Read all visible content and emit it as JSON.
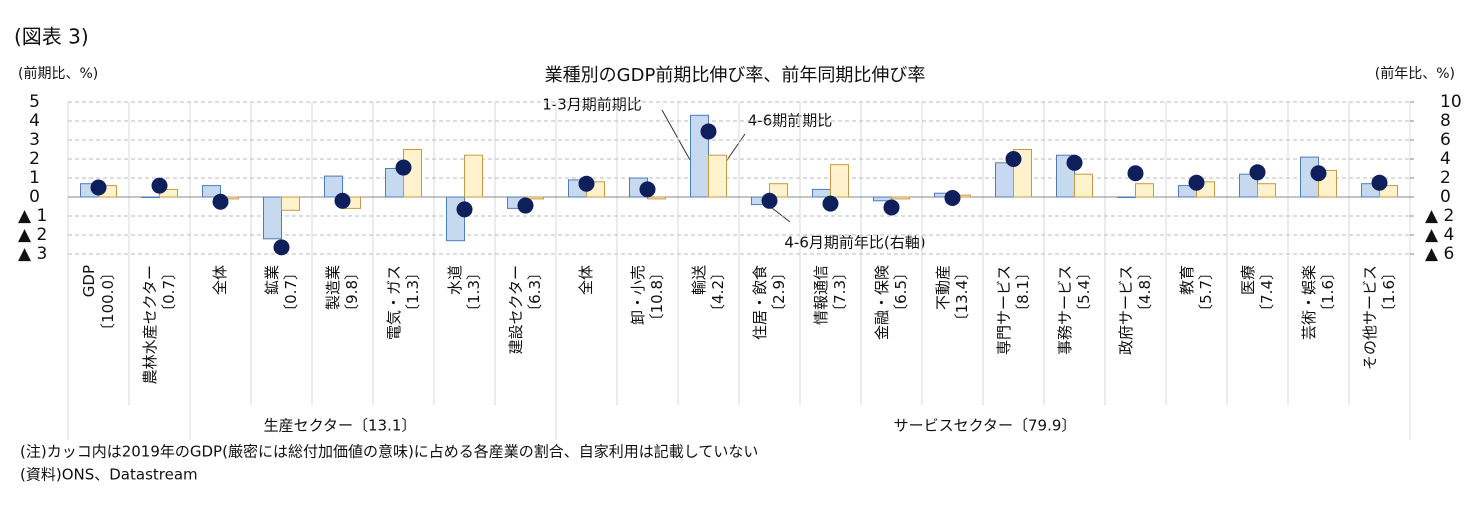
{
  "figure_label": "(図表 3)",
  "chart_data": {
    "type": "bar",
    "title": "業種別のGDP前期比伸び率、前年同期比伸び率",
    "y_label": "(前期比、%)",
    "y2_label": "(前年比、%)",
    "categories": [
      "GDP",
      "農林水産セクター",
      "全体",
      "鉱業",
      "製造業",
      "電気・ガス",
      "水道",
      "建設セクター",
      "全体",
      "卸・小売",
      "輸送",
      "住居・飲食",
      "情報通信",
      "金融・保険",
      "不動産",
      "専門サービス",
      "事務サービス",
      "政府サービス",
      "教育",
      "医療",
      "芸術・娯楽",
      "その他サービス"
    ],
    "shares": [
      "〔100.0〕",
      "〔0.7〕",
      null,
      "〔0.7〕",
      "〔9.8〕",
      "〔1.3〕",
      "〔1.3〕",
      "〔6.3〕",
      null,
      "〔10.8〕",
      "〔4.2〕",
      "〔2.9〕",
      "〔7.3〕",
      "〔6.5〕",
      "〔13.4〕",
      "〔8.1〕",
      "〔5.4〕",
      "〔4.8〕",
      "〔5.7〕",
      "〔7.4〕",
      "〔1.6〕",
      "〔1.6〕"
    ],
    "groups": [
      "生産セクター〔13.1〕",
      "サービスセクター〔79.9〕"
    ],
    "series": [
      {
        "name": "1-3月期前期比",
        "color": "#c6d9ef",
        "edge": "#4f7db8",
        "values": [
          0.7,
          0.0,
          0.6,
          -2.2,
          1.1,
          1.5,
          -2.3,
          -0.6,
          0.9,
          1.0,
          4.3,
          -0.4,
          0.4,
          -0.2,
          0.2,
          1.8,
          2.2,
          0.0,
          0.6,
          1.2,
          2.1,
          0.7
        ]
      },
      {
        "name": "4-6期前期比",
        "color": "#fff2cc",
        "edge": "#c49a45",
        "values": [
          0.6,
          0.4,
          -0.1,
          -0.7,
          -0.6,
          2.5,
          2.2,
          -0.1,
          0.8,
          -0.1,
          2.2,
          0.7,
          1.7,
          -0.1,
          0.1,
          2.5,
          1.2,
          0.7,
          0.8,
          0.7,
          1.4,
          0.6
        ]
      },
      {
        "name": "4-6月期前年比(右軸)",
        "color": "#0f1f5c",
        "axis": "y2",
        "values": [
          1.0,
          1.2,
          -0.5,
          -5.3,
          -0.4,
          3.1,
          -1.3,
          -0.9,
          1.4,
          0.8,
          6.9,
          -0.4,
          -0.7,
          -1.1,
          -0.1,
          4.0,
          3.6,
          2.5,
          1.5,
          2.6,
          2.5,
          1.5
        ]
      }
    ],
    "ylim": [
      -3,
      5
    ],
    "yticks": [
      {
        "value": -3,
        "label": "▲ 3"
      },
      {
        "value": -2,
        "label": "▲ 2"
      },
      {
        "value": -1,
        "label": "▲ 1"
      },
      0,
      1,
      2,
      3,
      4,
      5
    ],
    "y2lim": [
      -6,
      10
    ],
    "y2ticks": [
      {
        "value": -6,
        "label": "▲ 6"
      },
      {
        "value": -4,
        "label": "▲ 4"
      },
      {
        "value": -2,
        "label": "▲ 2"
      },
      0,
      2,
      4,
      6,
      8,
      10
    ],
    "grid": true,
    "notes": [
      "(注)カッコ内は2019年のGDP(厳密には総付加価値の意味)に占める各産業の割合、自家利用は記載していない",
      "(資料)ONS、Datastream"
    ]
  }
}
